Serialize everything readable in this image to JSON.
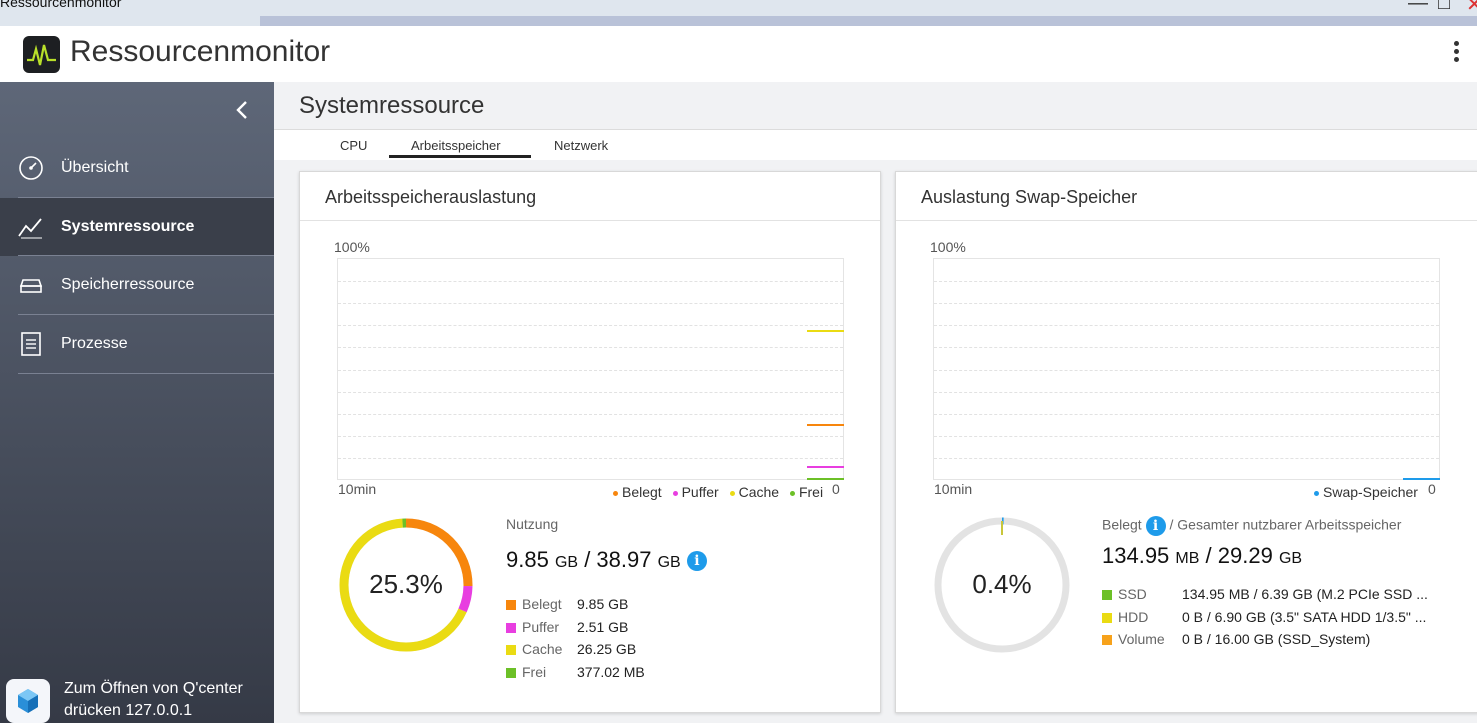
{
  "window": {
    "title": "Ressourcenmonitor"
  },
  "app": {
    "title": "Ressourcenmonitor"
  },
  "sidebar": {
    "items": [
      {
        "label": "Übersicht",
        "icon": "gauge-icon"
      },
      {
        "label": "Systemressource",
        "icon": "line-chart-icon",
        "active": true
      },
      {
        "label": "Speicherressource",
        "icon": "storage-icon"
      },
      {
        "label": "Prozesse",
        "icon": "list-icon"
      }
    ],
    "qcenter": {
      "line1": "Zum Öffnen von Q'center",
      "line2": "drücken 127.0.0.1"
    }
  },
  "page": {
    "title": "Systemressource"
  },
  "tabs": [
    {
      "label": "CPU"
    },
    {
      "label": "Arbeitsspeicher",
      "active": true
    },
    {
      "label": "Netzwerk"
    }
  ],
  "colors": {
    "belegt": "#f7860d",
    "puffer": "#e83ee0",
    "cache": "#eadb13",
    "frei": "#6cc027",
    "swap": "#1e9bea",
    "ssd": "#6cc027",
    "hdd": "#eadb13",
    "volume": "#f7a21b",
    "ring_bg": "#e3e3e3"
  },
  "memory_card": {
    "title": "Arbeitsspeicherauslastung",
    "y_top": "100%",
    "x_left": "10min",
    "x_right": "0",
    "legend": [
      "Belegt",
      "Puffer",
      "Cache",
      "Frei"
    ],
    "percent": "25.3%",
    "usage_label": "Nutzung",
    "used": "9.85",
    "total": "38.97",
    "unit": "GB",
    "breakdown": [
      {
        "name": "Belegt",
        "value": "9.85 GB"
      },
      {
        "name": "Puffer",
        "value": "2.51 GB"
      },
      {
        "name": "Cache",
        "value": "26.25 GB"
      },
      {
        "name": "Frei",
        "value": "377.02 MB"
      }
    ]
  },
  "swap_card": {
    "title": "Auslastung Swap-Speicher",
    "y_top": "100%",
    "x_left": "10min",
    "x_right": "0",
    "legend": [
      "Swap-Speicher"
    ],
    "percent": "0.4%",
    "belegt_label": "Belegt",
    "total_label": "/ Gesamter nutzbarer Arbeitsspeicher",
    "used": "134.95",
    "used_unit": "MB",
    "total": "29.29",
    "total_unit": "GB",
    "devices": [
      {
        "name": "SSD",
        "value": "134.95 MB / 6.39 GB (M.2 PCIe SSD ..."
      },
      {
        "name": "HDD",
        "value": "0 B / 6.90 GB (3.5\" SATA HDD 1/3.5\" ..."
      },
      {
        "name": "Volume",
        "value": "0 B / 16.00 GB (SSD_System)"
      }
    ]
  },
  "chart_data": [
    {
      "type": "line",
      "title": "Arbeitsspeicherauslastung",
      "x_range": [
        "10min",
        "0"
      ],
      "ylim": [
        0,
        100
      ],
      "grid": true,
      "legend_position": "bottom-right",
      "series": [
        {
          "name": "Belegt",
          "values": [
            25.3
          ]
        },
        {
          "name": "Puffer",
          "values": [
            6.4
          ]
        },
        {
          "name": "Cache",
          "values": [
            67.4
          ]
        },
        {
          "name": "Frei",
          "values": [
            1.0
          ]
        }
      ]
    },
    {
      "type": "line",
      "title": "Auslastung Swap-Speicher",
      "x_range": [
        "10min",
        "0"
      ],
      "ylim": [
        0,
        100
      ],
      "grid": true,
      "legend_position": "bottom-right",
      "series": [
        {
          "name": "Swap-Speicher",
          "values": [
            0.4
          ]
        }
      ]
    }
  ]
}
